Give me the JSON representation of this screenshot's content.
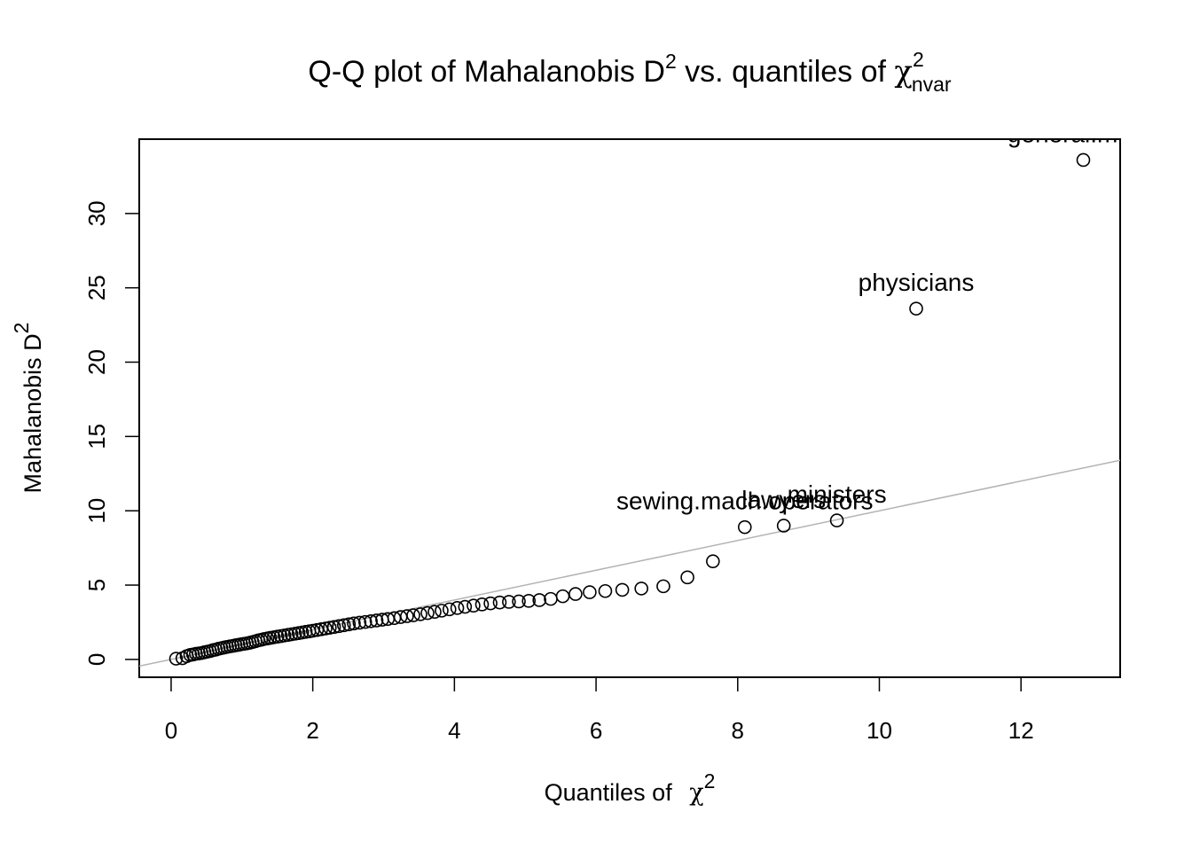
{
  "chart_data": {
    "type": "scatter",
    "title": {
      "main": "Q-Q plot of Mahalanobis D",
      "main_sup": "2",
      "mid": " vs. quantiles of ",
      "chi": "χ",
      "chi_sup": "2",
      "chi_sub": "nvar"
    },
    "xlabel": {
      "text": "Quantiles of ",
      "chi": "χ",
      "sup": "2"
    },
    "ylabel": {
      "text": "Mahalanobis D",
      "sup": "2"
    },
    "xlim": [
      -0.45,
      13.4
    ],
    "ylim": [
      -1.2,
      35.0
    ],
    "xticks": [
      0,
      2,
      4,
      6,
      8,
      10,
      12
    ],
    "yticks": [
      0,
      5,
      10,
      15,
      20,
      25,
      30
    ],
    "reference_line": {
      "intercept": 0,
      "slope": 1,
      "color": "#b3b3b3"
    },
    "points": [
      [
        0.07,
        0.05
      ],
      [
        0.16,
        0.08
      ],
      [
        0.22,
        0.22
      ],
      [
        0.27,
        0.3
      ],
      [
        0.31,
        0.33
      ],
      [
        0.35,
        0.38
      ],
      [
        0.39,
        0.4
      ],
      [
        0.43,
        0.43
      ],
      [
        0.47,
        0.48
      ],
      [
        0.51,
        0.52
      ],
      [
        0.55,
        0.56
      ],
      [
        0.59,
        0.62
      ],
      [
        0.63,
        0.66
      ],
      [
        0.67,
        0.72
      ],
      [
        0.71,
        0.76
      ],
      [
        0.75,
        0.8
      ],
      [
        0.79,
        0.84
      ],
      [
        0.83,
        0.88
      ],
      [
        0.87,
        0.91
      ],
      [
        0.91,
        0.95
      ],
      [
        0.95,
        0.98
      ],
      [
        0.99,
        1.02
      ],
      [
        1.03,
        1.05
      ],
      [
        1.07,
        1.08
      ],
      [
        1.11,
        1.12
      ],
      [
        1.15,
        1.17
      ],
      [
        1.19,
        1.22
      ],
      [
        1.23,
        1.28
      ],
      [
        1.27,
        1.32
      ],
      [
        1.31,
        1.37
      ],
      [
        1.36,
        1.41
      ],
      [
        1.4,
        1.45
      ],
      [
        1.45,
        1.49
      ],
      [
        1.5,
        1.53
      ],
      [
        1.55,
        1.57
      ],
      [
        1.6,
        1.61
      ],
      [
        1.65,
        1.65
      ],
      [
        1.7,
        1.69
      ],
      [
        1.75,
        1.73
      ],
      [
        1.8,
        1.77
      ],
      [
        1.85,
        1.81
      ],
      [
        1.9,
        1.85
      ],
      [
        1.95,
        1.89
      ],
      [
        2.0,
        1.93
      ],
      [
        2.06,
        1.98
      ],
      [
        2.12,
        2.03
      ],
      [
        2.18,
        2.08
      ],
      [
        2.24,
        2.13
      ],
      [
        2.3,
        2.18
      ],
      [
        2.37,
        2.24
      ],
      [
        2.44,
        2.3
      ],
      [
        2.51,
        2.36
      ],
      [
        2.58,
        2.42
      ],
      [
        2.66,
        2.47
      ],
      [
        2.74,
        2.52
      ],
      [
        2.82,
        2.57
      ],
      [
        2.9,
        2.62
      ],
      [
        2.98,
        2.67
      ],
      [
        3.06,
        2.72
      ],
      [
        3.15,
        2.78
      ],
      [
        3.24,
        2.85
      ],
      [
        3.33,
        2.91
      ],
      [
        3.42,
        2.97
      ],
      [
        3.52,
        3.04
      ],
      [
        3.62,
        3.12
      ],
      [
        3.72,
        3.2
      ],
      [
        3.82,
        3.28
      ],
      [
        3.93,
        3.37
      ],
      [
        4.04,
        3.46
      ],
      [
        4.15,
        3.54
      ],
      [
        4.27,
        3.62
      ],
      [
        4.39,
        3.7
      ],
      [
        4.51,
        3.77
      ],
      [
        4.64,
        3.83
      ],
      [
        4.77,
        3.87
      ],
      [
        4.91,
        3.9
      ],
      [
        5.05,
        3.94
      ],
      [
        5.2,
        3.99
      ],
      [
        5.36,
        4.07
      ],
      [
        5.53,
        4.25
      ],
      [
        5.71,
        4.4
      ],
      [
        5.91,
        4.52
      ],
      [
        6.13,
        4.6
      ],
      [
        6.37,
        4.68
      ],
      [
        6.64,
        4.77
      ],
      [
        6.95,
        4.92
      ],
      [
        7.29,
        5.52
      ],
      [
        7.65,
        6.6
      ],
      [
        8.1,
        8.9
      ],
      [
        8.65,
        9.0
      ],
      [
        9.4,
        9.35
      ],
      [
        10.52,
        23.6
      ],
      [
        12.88,
        33.6
      ]
    ],
    "labels": [
      {
        "text": "sewing.mach.operators",
        "x": 8.1,
        "y": 8.9
      },
      {
        "text": "lawyers",
        "x": 8.65,
        "y": 9.0
      },
      {
        "text": "ministers",
        "x": 9.4,
        "y": 9.35
      },
      {
        "text": "physicians",
        "x": 10.52,
        "y": 23.6
      },
      {
        "text": "general.mana",
        "x": 12.88,
        "y": 33.6
      }
    ]
  }
}
